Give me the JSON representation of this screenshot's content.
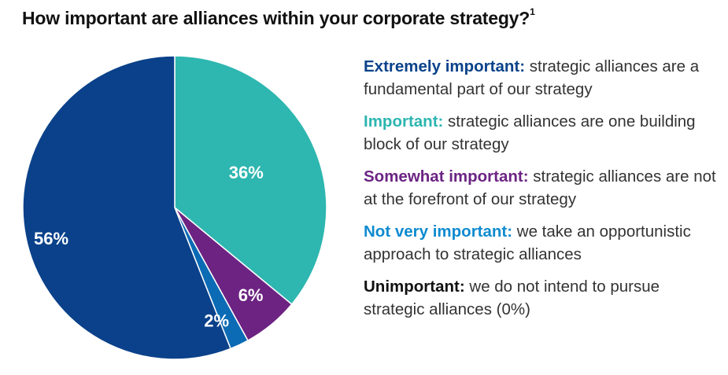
{
  "title": "How important are alliances within your corporate strategy?",
  "title_footnote": "1",
  "legend": [
    {
      "label": "Extremely important:",
      "text": " strategic alliances are a fundamental part of our strategy",
      "color": "#0a438a"
    },
    {
      "label": "Important:",
      "text": " strategic alliances are one building block of our strategy",
      "color": "#2db5b0"
    },
    {
      "label": "Somewhat important:",
      "text": " strategic alliances are not at the forefront of our strategy",
      "color": "#6c2483"
    },
    {
      "label": "Not very important:",
      "text": " we take an opportunistic approach to strategic alliances",
      "color": "#0f8bd0"
    },
    {
      "label": "Unimportant:",
      "text": " we do not intend to pursue strategic alliances (0%)",
      "color": "#111111"
    }
  ],
  "chart_data": {
    "type": "pie",
    "title": "How important are alliances within your corporate strategy?",
    "slices": [
      {
        "name": "Important",
        "value": 36,
        "label": "36%",
        "color": "#2eb6b0"
      },
      {
        "name": "Somewhat important",
        "value": 6,
        "label": "6%",
        "color": "#6d2382"
      },
      {
        "name": "Not very important",
        "value": 2,
        "label": "2%",
        "color": "#0b6bb4"
      },
      {
        "name": "Extremely important",
        "value": 56,
        "label": "56%",
        "color": "#0a418a"
      }
    ]
  }
}
